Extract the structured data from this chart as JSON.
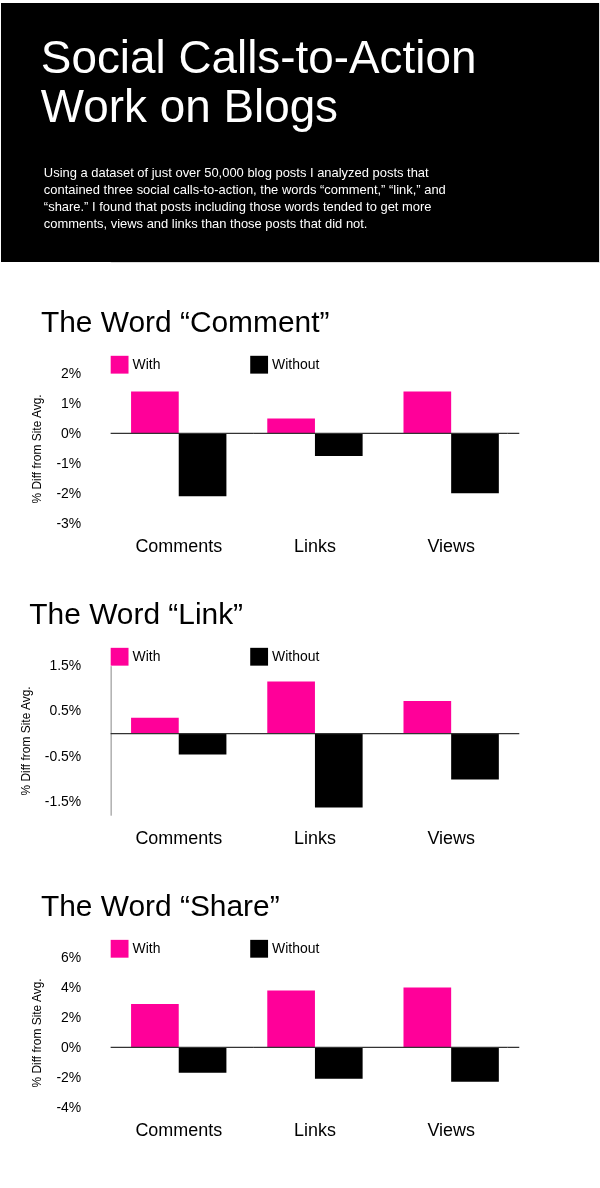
{
  "chart_data": [
    {
      "type": "other",
      "title": "Social Calls-to-Action Work on Blogs",
      "subtitle": "Using a dataset of just over 50,000 blog posts I analyzed posts that contained three social calls-to-action, the words “comment,” “link,” and “share.” I found that posts including those words tended to get more comments, views and links than those posts that did not."
    },
    {
      "type": "bar",
      "title": "The Word  “Comment”",
      "ylabel": "% Diff from Site Avg.",
      "categories": [
        "Comments",
        "Links",
        "Views"
      ],
      "series": [
        {
          "name": "With",
          "color": "#ff0099",
          "values": [
            1.4,
            0.5,
            1.4
          ]
        },
        {
          "name": "Without",
          "color": "#000000",
          "values": [
            -2.1,
            -0.75,
            -2.0
          ]
        }
      ],
      "ylim": [
        -3,
        2
      ],
      "yticks": [
        {
          "value": 2,
          "label": "2%"
        },
        {
          "value": 1,
          "label": "1%"
        },
        {
          "value": 0,
          "label": "0%"
        },
        {
          "value": -1,
          "label": "-1%"
        },
        {
          "value": -2,
          "label": "-2%"
        },
        {
          "value": -3,
          "label": "-3%"
        }
      ],
      "ref_lines": [
        {
          "axis": "y",
          "value": 0,
          "color": "#333333"
        }
      ],
      "legend": "top",
      "grid": false
    },
    {
      "type": "bar",
      "title": "The Word  “Link”",
      "ylabel": "% Diff from Site Avg.",
      "categories": [
        "Comments",
        "Links",
        "Views"
      ],
      "series": [
        {
          "name": "With",
          "color": "#ff0099",
          "values": [
            0.35,
            1.15,
            0.72
          ]
        },
        {
          "name": "Without",
          "color": "#000000",
          "values": [
            -0.46,
            -1.63,
            -1.01
          ]
        }
      ],
      "ylim": [
        -1.8,
        1.5
      ],
      "yticks": [
        {
          "value": 1.5,
          "label": "1.5%"
        },
        {
          "value": 0.5,
          "label": "0.5%"
        },
        {
          "value": -0.5,
          "label": "-0.5%"
        },
        {
          "value": -1.5,
          "label": "-1.5%"
        }
      ],
      "ref_lines": [
        {
          "axis": "y",
          "value": 0,
          "color": "#333333"
        }
      ],
      "legend": "top",
      "grid": false
    },
    {
      "type": "bar",
      "title": "The Word  “Share”",
      "ylabel": "% Diff from Site Avg.",
      "categories": [
        "Comments",
        "Links",
        "Views"
      ],
      "series": [
        {
          "name": "With",
          "color": "#ff0099",
          "values": [
            2.9,
            3.8,
            4.0
          ]
        },
        {
          "name": "Without",
          "color": "#000000",
          "values": [
            -1.7,
            -2.1,
            -2.3
          ]
        }
      ],
      "ylim": [
        -4,
        6
      ],
      "yticks": [
        {
          "value": 6,
          "label": "6%"
        },
        {
          "value": 4,
          "label": "4%"
        },
        {
          "value": 2,
          "label": "2%"
        },
        {
          "value": 0,
          "label": "0%"
        },
        {
          "value": -2,
          "label": "-2%"
        },
        {
          "value": -4,
          "label": "-4%"
        }
      ],
      "ref_lines": [
        {
          "axis": "y",
          "value": 0,
          "color": "#333333"
        }
      ],
      "legend": "top",
      "grid": false
    }
  ]
}
